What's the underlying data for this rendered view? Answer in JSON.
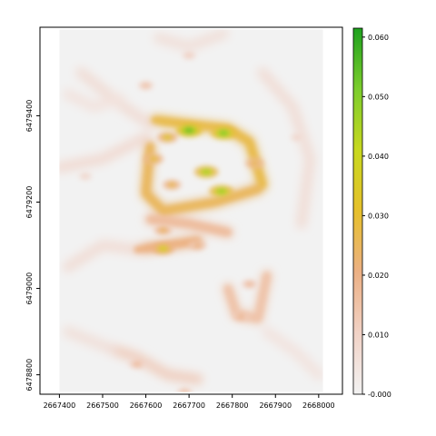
{
  "chart_data": {
    "type": "heatmap",
    "title": "",
    "xlabel": "",
    "ylabel": "",
    "xlim": [
      2667355,
      2668055
    ],
    "ylim": [
      6478755,
      6479605
    ],
    "data_xlim": [
      2667400,
      2668010
    ],
    "data_ylim": [
      6478760,
      6479600
    ],
    "x_ticks": [
      2667400,
      2667500,
      2667600,
      2667700,
      2667800,
      2667900,
      2668000
    ],
    "x_tick_labels": [
      "2667400",
      "2667500",
      "2667600",
      "2667700",
      "2667800",
      "2667900",
      "2668000"
    ],
    "y_ticks": [
      6478800,
      6479000,
      6479200,
      6479400
    ],
    "y_tick_labels": [
      "6478800",
      "6479000",
      "6479200",
      "6479400"
    ],
    "legend": {
      "position": "right",
      "min": 0.0,
      "max": 0.0615,
      "tick_values": [
        0.0,
        0.01,
        0.02,
        0.03,
        0.04,
        0.05,
        0.06
      ],
      "tick_labels": [
        "-0.000",
        "0.010",
        "0.020",
        "0.030",
        "0.040",
        "0.050",
        "0.060"
      ],
      "colors": [
        "#f2f2f2",
        "#f1d2c6",
        "#ecb084",
        "#e6c02c",
        "#c8d81f",
        "#7ccd2d",
        "#1ea11e"
      ]
    },
    "hotspots": [
      {
        "x": 2667700,
        "y": 6479366,
        "value": 0.055
      },
      {
        "x": 2667780,
        "y": 6479360,
        "value": 0.052
      },
      {
        "x": 2667740,
        "y": 6479270,
        "value": 0.046
      },
      {
        "x": 2667775,
        "y": 6479225,
        "value": 0.048
      },
      {
        "x": 2667640,
        "y": 6479092,
        "value": 0.038
      },
      {
        "x": 2667650,
        "y": 6479350,
        "value": 0.034
      },
      {
        "x": 2667852,
        "y": 6479290,
        "value": 0.028
      },
      {
        "x": 2667618,
        "y": 6479300,
        "value": 0.031
      },
      {
        "x": 2667660,
        "y": 6479240,
        "value": 0.028
      },
      {
        "x": 2667640,
        "y": 6479135,
        "value": 0.026
      },
      {
        "x": 2667720,
        "y": 6479100,
        "value": 0.022
      },
      {
        "x": 2667820,
        "y": 6478935,
        "value": 0.02
      },
      {
        "x": 2667840,
        "y": 6479010,
        "value": 0.018
      },
      {
        "x": 2667580,
        "y": 6478825,
        "value": 0.018
      },
      {
        "x": 2667600,
        "y": 6479470,
        "value": 0.016
      },
      {
        "x": 2667700,
        "y": 6479540,
        "value": 0.012
      },
      {
        "x": 2667690,
        "y": 6478760,
        "value": 0.016
      },
      {
        "x": 2667460,
        "y": 6479260,
        "value": 0.01
      },
      {
        "x": 2667950,
        "y": 6479350,
        "value": 0.01
      }
    ],
    "ridges": [
      {
        "points": [
          [
            2667620,
            6479390
          ],
          [
            2667700,
            6479380
          ],
          [
            2667790,
            6479370
          ],
          [
            2667840,
            6479340
          ],
          [
            2667870,
            6479240
          ]
        ],
        "value": 0.026
      },
      {
        "points": [
          [
            2667610,
            6479330
          ],
          [
            2667600,
            6479220
          ],
          [
            2667640,
            6479180
          ],
          [
            2667760,
            6479200
          ],
          [
            2667860,
            6479230
          ]
        ],
        "value": 0.024
      },
      {
        "points": [
          [
            2667580,
            6479090
          ],
          [
            2667650,
            6479100
          ],
          [
            2667720,
            6479110
          ]
        ],
        "value": 0.02
      },
      {
        "points": [
          [
            2667610,
            6479160
          ],
          [
            2667700,
            6479150
          ],
          [
            2667790,
            6479130
          ]
        ],
        "value": 0.016
      },
      {
        "points": [
          [
            2667790,
            6479000
          ],
          [
            2667810,
            6478940
          ],
          [
            2667860,
            6478930
          ],
          [
            2667880,
            6479030
          ]
        ],
        "value": 0.014
      },
      {
        "points": [
          [
            2667520,
            6478860
          ],
          [
            2667580,
            6478840
          ],
          [
            2667650,
            6478800
          ],
          [
            2667720,
            6478790
          ]
        ],
        "value": 0.012
      },
      {
        "points": [
          [
            2667400,
            6479280
          ],
          [
            2667500,
            6479300
          ],
          [
            2667600,
            6479350
          ]
        ],
        "value": 0.008
      },
      {
        "points": [
          [
            2667450,
            6479500
          ],
          [
            2667550,
            6479420
          ],
          [
            2667610,
            6479380
          ]
        ],
        "value": 0.007
      },
      {
        "points": [
          [
            2667870,
            6479500
          ],
          [
            2667940,
            6479420
          ],
          [
            2667980,
            6479300
          ],
          [
            2667960,
            6479150
          ]
        ],
        "value": 0.007
      },
      {
        "points": [
          [
            2667420,
            6479050
          ],
          [
            2667500,
            6479100
          ],
          [
            2667580,
            6479090
          ]
        ],
        "value": 0.007
      },
      {
        "points": [
          [
            2667420,
            6478900
          ],
          [
            2667520,
            6478860
          ]
        ],
        "value": 0.006
      },
      {
        "points": [
          [
            2667880,
            6478900
          ],
          [
            2667950,
            6478850
          ],
          [
            2668000,
            6478800
          ]
        ],
        "value": 0.005
      },
      {
        "points": [
          [
            2667630,
            6479580
          ],
          [
            2667700,
            6479560
          ],
          [
            2667780,
            6479590
          ]
        ],
        "value": 0.006
      },
      {
        "points": [
          [
            2667420,
            6479450
          ],
          [
            2667480,
            6479420
          ],
          [
            2667540,
            6479440
          ]
        ],
        "value": 0.005
      }
    ]
  }
}
